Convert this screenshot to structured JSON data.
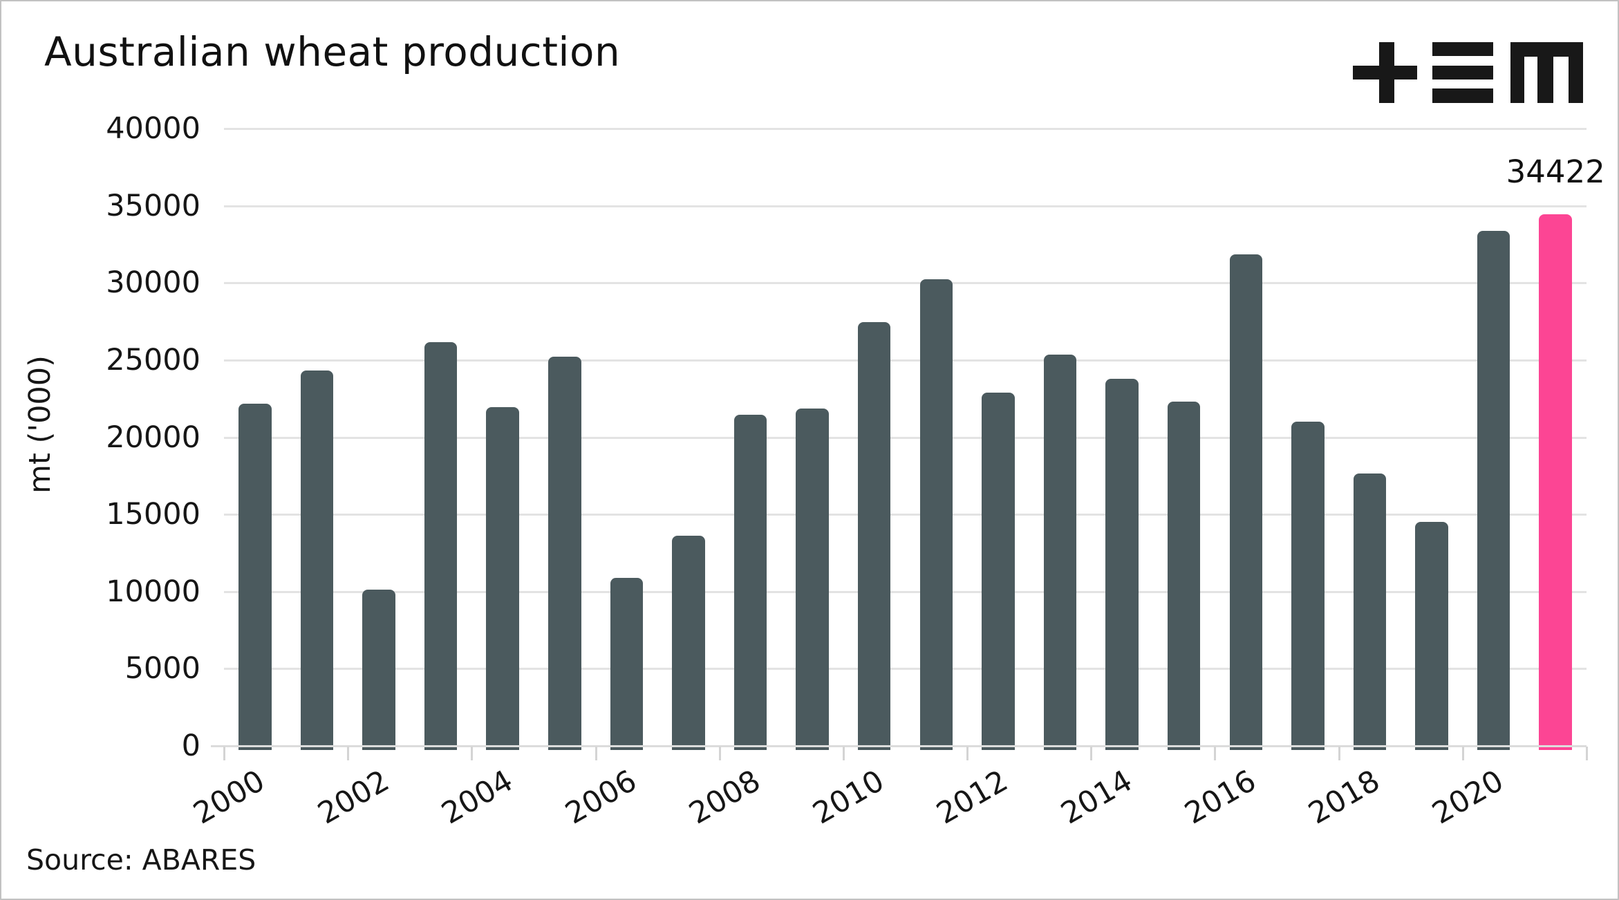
{
  "header": {
    "title": "Australian wheat production"
  },
  "logo": {
    "icon": "tem-logo",
    "glyphs": "+≡m"
  },
  "source": {
    "text": "Source: ABARES"
  },
  "y_axis": {
    "label": "mt ('000)",
    "tick_labels": [
      "0",
      "5000",
      "10000",
      "15000",
      "20000",
      "25000",
      "30000",
      "35000",
      "40000"
    ]
  },
  "x_axis": {
    "tick_labels": [
      "2000",
      "2002",
      "2004",
      "2006",
      "2008",
      "2010",
      "2012",
      "2014",
      "2016",
      "2018",
      "2020"
    ]
  },
  "colors": {
    "bar": "#4b5a5e",
    "highlight": "#fc4594",
    "gridline": "#e3e3e3",
    "axis_line": "#dcdcdc",
    "tick": "#d4d4d4",
    "text": "#161616",
    "background": "#ffffff"
  },
  "chart_data": {
    "type": "bar",
    "title": "Australian wheat production",
    "xlabel": "",
    "ylabel": "mt ('000)",
    "source": "Source: ABARES",
    "ylim": [
      0,
      40000
    ],
    "ytick_step": 5000,
    "grid": "horizontal",
    "legend_position": "none",
    "categories": [
      "2000",
      "2001",
      "2002",
      "2003",
      "2004",
      "2005",
      "2006",
      "2007",
      "2008",
      "2009",
      "2010",
      "2011",
      "2012",
      "2013",
      "2014",
      "2015",
      "2016",
      "2017",
      "2018",
      "2019",
      "2020",
      "2021"
    ],
    "values": [
      22108,
      24299,
      10059,
      26132,
      21905,
      25173,
      10822,
      13569,
      21420,
      21834,
      27410,
      30203,
      22855,
      25303,
      23743,
      22275,
      31819,
      20941,
      17598,
      14480,
      33344,
      34422
    ],
    "highlight_index": 21,
    "annotation": {
      "text": "34422",
      "index": 21
    }
  }
}
